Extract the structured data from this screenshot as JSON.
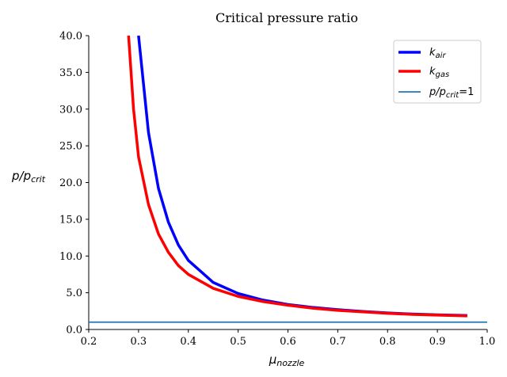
{
  "chart_data": {
    "type": "line",
    "title": "Critical pressure ratio",
    "xlabel": {
      "main": "μ",
      "sub": "nozzle"
    },
    "ylabel": {
      "main": "p/p",
      "sub": "crit"
    },
    "xlim": [
      0.2,
      1.0
    ],
    "ylim": [
      0.0,
      40.0
    ],
    "xticks": [
      "0.2",
      "0.3",
      "0.4",
      "0.5",
      "0.6",
      "0.7",
      "0.8",
      "0.9",
      "1.0"
    ],
    "yticks": [
      "0.0",
      "5.0",
      "10.0",
      "15.0",
      "20.0",
      "25.0",
      "30.0",
      "35.0",
      "40.0"
    ],
    "grid": false,
    "legend_position": "top-right",
    "series": [
      {
        "name": "k",
        "name_sub": "air",
        "color": "#0000ff",
        "x": [
          0.3,
          0.32,
          0.34,
          0.36,
          0.38,
          0.4,
          0.45,
          0.5,
          0.55,
          0.6,
          0.65,
          0.7,
          0.75,
          0.8,
          0.85,
          0.9,
          0.96
        ],
        "y": [
          40.0,
          26.8,
          19.2,
          14.6,
          11.5,
          9.4,
          6.4,
          4.9,
          4.0,
          3.4,
          3.0,
          2.7,
          2.45,
          2.25,
          2.1,
          2.0,
          1.9
        ]
      },
      {
        "name": "k",
        "name_sub": "gas",
        "color": "#ff0000",
        "x": [
          0.28,
          0.29,
          0.3,
          0.32,
          0.34,
          0.36,
          0.38,
          0.4,
          0.45,
          0.5,
          0.55,
          0.6,
          0.65,
          0.7,
          0.75,
          0.8,
          0.85,
          0.9,
          0.96
        ],
        "y": [
          40.0,
          30.0,
          23.5,
          17.0,
          13.0,
          10.5,
          8.7,
          7.5,
          5.6,
          4.5,
          3.8,
          3.3,
          2.9,
          2.6,
          2.4,
          2.2,
          2.05,
          1.95,
          1.85
        ]
      },
      {
        "name": "p/p",
        "name_sub": "crit",
        "name_suffix": "=1",
        "color": "#1f77b4",
        "x": [
          0.2,
          1.0
        ],
        "y": [
          1.0,
          1.0
        ]
      }
    ]
  }
}
